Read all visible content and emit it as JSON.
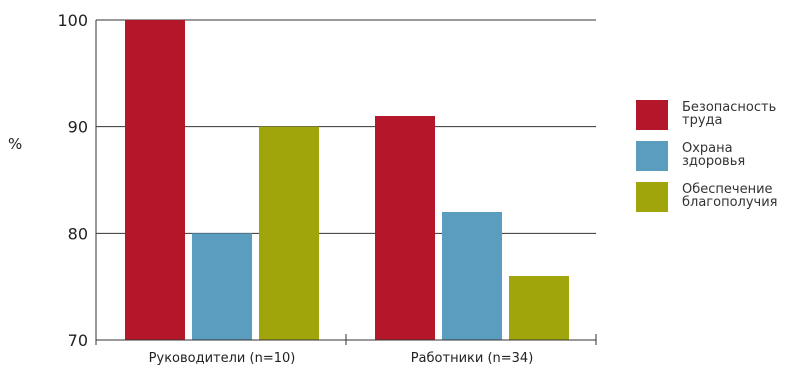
{
  "chart_data": {
    "type": "bar",
    "ylabel": "%",
    "ylim": [
      70,
      100
    ],
    "yticks": [
      100,
      90,
      80,
      70
    ],
    "categories": [
      "Руководители (n=10)",
      "Работники (n=34)"
    ],
    "series": [
      {
        "name": "Безопасность\nтруда",
        "color": "#b5172a",
        "values": [
          100,
          91
        ]
      },
      {
        "name": "Охрана\nздоровья",
        "color": "#5b9dbf",
        "values": [
          80,
          82
        ]
      },
      {
        "name": "Обеспечение\nблагополучия",
        "color": "#a1a50c",
        "values": [
          90,
          76
        ]
      }
    ],
    "grid": true,
    "legend": "right"
  }
}
